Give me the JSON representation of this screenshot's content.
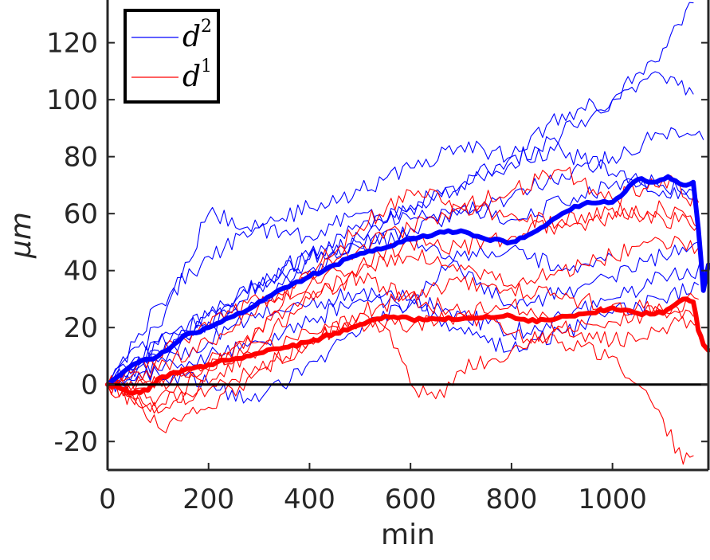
{
  "chart_data": {
    "type": "line",
    "title": "",
    "xlabel": "min",
    "ylabel": "μm",
    "xlim": [
      0,
      1190
    ],
    "ylim": [
      -30,
      135
    ],
    "xticks": [
      0,
      200,
      400,
      600,
      800,
      1000
    ],
    "xtick_labels": [
      "0",
      "200",
      "400",
      "600",
      "800",
      "1000"
    ],
    "yticks": [
      -20,
      0,
      20,
      40,
      60,
      80,
      100,
      120
    ],
    "ytick_labels": [
      "-20",
      "0",
      "20",
      "40",
      "60",
      "80",
      "100",
      "120"
    ],
    "zero_line": 0,
    "legend": {
      "position": "top-left",
      "entries": [
        {
          "base": "d",
          "sup": "2",
          "color": "#0000ff"
        },
        {
          "base": "d",
          "sup": "1",
          "color": "#ff0000"
        }
      ]
    },
    "series": [
      {
        "name": "d2 mean",
        "group": "d2",
        "role": "mean",
        "color": "#0000ff",
        "x": [
          0,
          50,
          100,
          150,
          200,
          250,
          300,
          350,
          400,
          450,
          500,
          550,
          600,
          650,
          700,
          750,
          800,
          850,
          900,
          950,
          1000,
          1050,
          1080,
          1110,
          1140,
          1160,
          1170,
          1180,
          1190
        ],
        "y": [
          0,
          7,
          10,
          17,
          20,
          24,
          29,
          34,
          38,
          42,
          46,
          48,
          51,
          53,
          54,
          51,
          50,
          54,
          60,
          64,
          64,
          72,
          71,
          73,
          70,
          71,
          55,
          33,
          42
        ]
      },
      {
        "name": "d1 mean",
        "group": "d1",
        "role": "mean",
        "color": "#ff0000",
        "x": [
          0,
          50,
          80,
          100,
          150,
          200,
          250,
          300,
          350,
          400,
          450,
          500,
          550,
          600,
          650,
          700,
          750,
          800,
          850,
          900,
          950,
          1000,
          1050,
          1100,
          1140,
          1160,
          1170,
          1180,
          1190
        ],
        "y": [
          0,
          -3,
          -2,
          2,
          5,
          7,
          9,
          11,
          13,
          15,
          18,
          21,
          24,
          23,
          23,
          23,
          24,
          24,
          22,
          24,
          25,
          27,
          25,
          25,
          30,
          29,
          19,
          14,
          12
        ]
      },
      {
        "name": "d2 cell 1",
        "group": "d2",
        "role": "trace",
        "color": "#0000ff",
        "x": [
          0,
          100,
          200,
          300,
          400,
          500,
          600,
          700,
          800,
          900,
          1000,
          1100,
          1160
        ],
        "y": [
          0,
          12,
          22,
          34,
          44,
          52,
          62,
          70,
          78,
          88,
          100,
          118,
          134
        ]
      },
      {
        "name": "d2 cell 2",
        "group": "d2",
        "role": "trace",
        "color": "#0000ff",
        "x": [
          0,
          100,
          200,
          300,
          400,
          500,
          600,
          700,
          800,
          900,
          1000,
          1100,
          1160
        ],
        "y": [
          0,
          15,
          24,
          36,
          46,
          55,
          63,
          70,
          80,
          95,
          100,
          108,
          102
        ]
      },
      {
        "name": "d2 cell 3",
        "group": "d2",
        "role": "trace",
        "color": "#0000ff",
        "x": [
          0,
          100,
          200,
          300,
          400,
          500,
          600,
          700,
          800,
          900,
          1000,
          1100,
          1180
        ],
        "y": [
          0,
          10,
          20,
          30,
          40,
          48,
          55,
          60,
          66,
          74,
          80,
          88,
          86
        ]
      },
      {
        "name": "d2 cell 4",
        "group": "d2",
        "role": "trace",
        "color": "#0000ff",
        "x": [
          0,
          100,
          200,
          300,
          400,
          500,
          600,
          700,
          800,
          900,
          1000,
          1100,
          1160
        ],
        "y": [
          0,
          28,
          45,
          55,
          62,
          68,
          76,
          84,
          80,
          82,
          74,
          70,
          68
        ]
      },
      {
        "name": "d2 cell 5",
        "group": "d2",
        "role": "trace",
        "color": "#0000ff",
        "x": [
          0,
          100,
          200,
          300,
          400,
          500,
          600,
          700,
          800,
          900,
          1000,
          1100,
          1160
        ],
        "y": [
          0,
          20,
          60,
          55,
          52,
          60,
          58,
          62,
          58,
          64,
          70,
          68,
          65
        ]
      },
      {
        "name": "d2 cell 6",
        "group": "d2",
        "role": "trace",
        "color": "#0000ff",
        "x": [
          0,
          100,
          200,
          300,
          400,
          500,
          600,
          700,
          800,
          900,
          1000,
          1100,
          1170
        ],
        "y": [
          0,
          14,
          25,
          35,
          45,
          50,
          52,
          40,
          28,
          32,
          38,
          45,
          50
        ]
      },
      {
        "name": "d2 cell 7",
        "group": "d2",
        "role": "trace",
        "color": "#0000ff",
        "x": [
          0,
          100,
          200,
          300,
          400,
          500,
          600,
          700,
          800,
          900,
          1000,
          1100,
          1180
        ],
        "y": [
          0,
          8,
          15,
          25,
          28,
          32,
          30,
          25,
          18,
          24,
          30,
          38,
          40
        ]
      },
      {
        "name": "d2 cell 8",
        "group": "d2",
        "role": "trace",
        "color": "#0000ff",
        "x": [
          0,
          100,
          200,
          300,
          400,
          500,
          600,
          700,
          800,
          900,
          1000,
          1100,
          1170
        ],
        "y": [
          0,
          5,
          10,
          15,
          22,
          30,
          28,
          20,
          12,
          18,
          25,
          30,
          35
        ]
      },
      {
        "name": "d2 cell 9",
        "group": "d2",
        "role": "trace",
        "color": "#0000ff",
        "x": [
          0,
          100,
          200,
          300,
          400,
          500,
          600,
          700,
          800,
          900,
          1000
        ],
        "y": [
          0,
          4,
          0,
          -6,
          8,
          18,
          30,
          45,
          48,
          40,
          45
        ]
      },
      {
        "name": "d1 cell 1",
        "group": "d1",
        "role": "trace",
        "color": "#ff0000",
        "x": [
          0,
          100,
          200,
          300,
          400,
          500,
          600,
          700,
          800,
          900,
          1000,
          1100,
          1170
        ],
        "y": [
          0,
          5,
          15,
          28,
          38,
          48,
          55,
          62,
          68,
          75,
          65,
          72,
          64
        ]
      },
      {
        "name": "d1 cell 2",
        "group": "d1",
        "role": "trace",
        "color": "#ff0000",
        "x": [
          0,
          100,
          200,
          300,
          400,
          500,
          600,
          700,
          800,
          900,
          1000,
          1100,
          1170
        ],
        "y": [
          0,
          0,
          5,
          20,
          40,
          55,
          68,
          62,
          60,
          55,
          58,
          62,
          55
        ]
      },
      {
        "name": "d1 cell 3",
        "group": "d1",
        "role": "trace",
        "color": "#ff0000",
        "x": [
          0,
          100,
          200,
          300,
          400,
          500,
          600,
          700,
          800,
          900,
          1000,
          1100,
          1170
        ],
        "y": [
          0,
          -10,
          0,
          15,
          30,
          40,
          45,
          42,
          35,
          40,
          45,
          50,
          48
        ]
      },
      {
        "name": "d1 cell 4",
        "group": "d1",
        "role": "trace",
        "color": "#ff0000",
        "x": [
          0,
          100,
          200,
          300,
          400,
          500,
          600,
          700,
          800,
          900,
          1000,
          1100,
          1160
        ],
        "y": [
          0,
          -15,
          -8,
          5,
          15,
          25,
          32,
          36,
          34,
          30,
          28,
          26,
          24
        ]
      },
      {
        "name": "d1 cell 5",
        "group": "d1",
        "role": "trace",
        "color": "#ff0000",
        "x": [
          0,
          100,
          200,
          300,
          400,
          500,
          600,
          700,
          800,
          900,
          1000,
          1100,
          1170
        ],
        "y": [
          0,
          2,
          8,
          12,
          18,
          22,
          20,
          25,
          28,
          20,
          15,
          20,
          22
        ]
      },
      {
        "name": "d1 cell 6",
        "group": "d1",
        "role": "trace",
        "color": "#ff0000",
        "x": [
          0,
          100,
          200,
          300,
          400,
          500,
          550,
          600,
          650,
          700,
          800,
          900,
          1000,
          1100,
          1170
        ],
        "y": [
          0,
          -5,
          -2,
          5,
          15,
          25,
          20,
          0,
          -5,
          5,
          12,
          18,
          22,
          26,
          30
        ]
      },
      {
        "name": "d1 cell 7",
        "group": "d1",
        "role": "trace",
        "color": "#ff0000",
        "x": [
          0,
          100,
          200,
          300,
          400,
          500,
          600,
          700,
          800,
          900,
          1000,
          1050,
          1100,
          1140,
          1160
        ],
        "y": [
          0,
          -8,
          5,
          20,
          32,
          38,
          30,
          25,
          18,
          15,
          10,
          0,
          -12,
          -28,
          -25
        ]
      },
      {
        "name": "d1 cell 8",
        "group": "d1",
        "role": "trace",
        "color": "#ff0000",
        "x": [
          0,
          100,
          200,
          300,
          400,
          500,
          600,
          700,
          800,
          900,
          1000,
          1100,
          1170
        ],
        "y": [
          0,
          10,
          20,
          30,
          35,
          42,
          50,
          48,
          52,
          58,
          62,
          58,
          56
        ]
      }
    ]
  }
}
